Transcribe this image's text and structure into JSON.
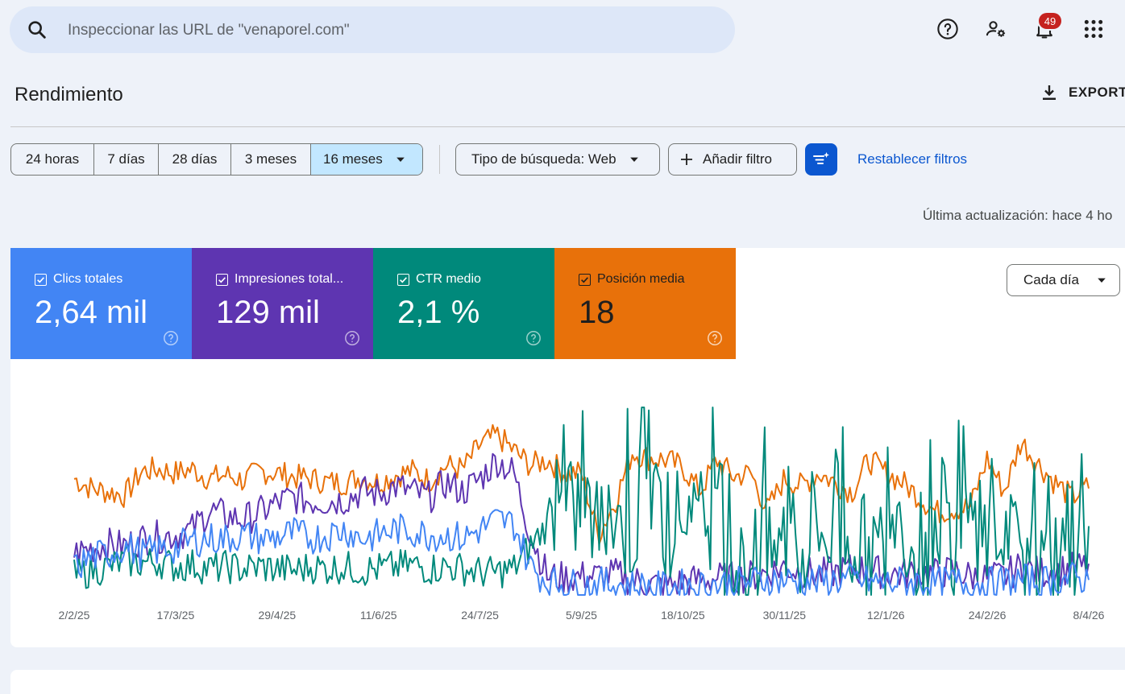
{
  "search": {
    "placeholder": "Inspeccionar las URL de \"venaporel.com\""
  },
  "header": {
    "notification_count": "49"
  },
  "page": {
    "title": "Rendimiento",
    "export_label": "EXPORT"
  },
  "date_ranges": [
    "24 horas",
    "7 días",
    "28 días",
    "3 meses",
    "16 meses"
  ],
  "filters": {
    "search_type": "Tipo de búsqueda: Web",
    "add_filter": "Añadir filtro",
    "reset": "Restablecer filtros"
  },
  "last_updated": "Última actualización: hace 4 ho",
  "metrics": [
    {
      "label": "Clics totales",
      "value": "2,64 mil",
      "color": "#4285f4"
    },
    {
      "label": "Impresiones total...",
      "value": "129 mil",
      "color": "#5e35b1"
    },
    {
      "label": "CTR medio",
      "value": "2,1 %",
      "color": "#00897b"
    },
    {
      "label": "Posición media",
      "value": "18",
      "color": "#e8710a"
    }
  ],
  "granularity": "Cada día",
  "chart_data": {
    "type": "line",
    "x_ticks": [
      "2/2/25",
      "17/3/25",
      "29/4/25",
      "11/6/25",
      "24/7/25",
      "5/9/25",
      "18/10/25",
      "30/11/25",
      "12/1/26",
      "24/2/26",
      "8/4/26"
    ],
    "series": [
      {
        "name": "Posición media",
        "color": "#e8710a",
        "weekly_relative": [
          0.62,
          0.57,
          0.55,
          0.53,
          0.66,
          0.67,
          0.65,
          0.67,
          0.62,
          0.64,
          0.61,
          0.66,
          0.65,
          0.63,
          0.62,
          0.6,
          0.6,
          0.63,
          0.6,
          0.64,
          0.66,
          0.61,
          0.69,
          0.67,
          0.8,
          0.85,
          0.77,
          0.69,
          0.72,
          0.65,
          0.65,
          0.32,
          0.5,
          0.76,
          0.73,
          0.72,
          0.68,
          0.55,
          0.72,
          0.63,
          0.65,
          0.45,
          0.62,
          0.58,
          0.65,
          0.6,
          0.55,
          0.72,
          0.65,
          0.6,
          0.52,
          0.44,
          0.46,
          0.47,
          0.73,
          0.55,
          0.82,
          0.7,
          0.6,
          0.52,
          0.58
        ]
      },
      {
        "name": "Impresiones totales",
        "color": "#5e35b1",
        "weekly_relative": [
          0.22,
          0.25,
          0.27,
          0.26,
          0.3,
          0.31,
          0.32,
          0.35,
          0.45,
          0.42,
          0.4,
          0.44,
          0.49,
          0.52,
          0.5,
          0.5,
          0.51,
          0.55,
          0.54,
          0.58,
          0.55,
          0.52,
          0.6,
          0.55,
          0.62,
          0.72,
          0.65,
          0.32,
          0.1,
          0.09,
          0.1,
          0.1,
          0.11,
          0.08,
          0.06,
          0.05,
          0.07,
          0.08,
          0.09,
          0.09,
          0.1,
          0.12,
          0.15,
          0.12,
          0.11,
          0.12,
          0.14,
          0.13,
          0.12,
          0.11,
          0.12,
          0.11,
          0.13,
          0.1,
          0.09,
          0.1,
          0.15,
          0.12,
          0.13,
          0.14,
          0.15
        ]
      },
      {
        "name": "CTR medio",
        "color": "#00897b",
        "weekly_relative": [
          0.1,
          0.13,
          0.15,
          0.18,
          0.17,
          0.18,
          0.15,
          0.16,
          0.14,
          0.15,
          0.14,
          0.15,
          0.14,
          0.13,
          0.15,
          0.14,
          0.15,
          0.13,
          0.14,
          0.15,
          0.16,
          0.14,
          0.15,
          0.14,
          0.12,
          0.12,
          0.14,
          0.26,
          0.38,
          0.42,
          0.48,
          0.36,
          0.42,
          0.3,
          0.55,
          0.35,
          0.45,
          0.4,
          0.4,
          0.12,
          0.14,
          0.18,
          0.3,
          0.22,
          0.35,
          0.28,
          0.3,
          0.25,
          0.22,
          0.33,
          0.18,
          0.25,
          0.22,
          0.4,
          0.3,
          0.3,
          0.22,
          0.18,
          0.2,
          0.2,
          0.12
        ]
      },
      {
        "name": "Clics totales",
        "color": "#4285f4",
        "weekly_relative": [
          0.14,
          0.2,
          0.22,
          0.26,
          0.22,
          0.24,
          0.25,
          0.29,
          0.3,
          0.3,
          0.32,
          0.3,
          0.31,
          0.33,
          0.3,
          0.32,
          0.35,
          0.3,
          0.32,
          0.35,
          0.34,
          0.32,
          0.32,
          0.3,
          0.35,
          0.4,
          0.38,
          0.15,
          0.07,
          0.06,
          0.05,
          0.06,
          0.06,
          0.05,
          0.04,
          0.04,
          0.05,
          0.05,
          0.06,
          0.06,
          0.07,
          0.08,
          0.08,
          0.07,
          0.07,
          0.08,
          0.08,
          0.07,
          0.06,
          0.07,
          0.07,
          0.06,
          0.07,
          0.06,
          0.06,
          0.07,
          0.08,
          0.07,
          0.08,
          0.09,
          0.08
        ]
      }
    ]
  }
}
